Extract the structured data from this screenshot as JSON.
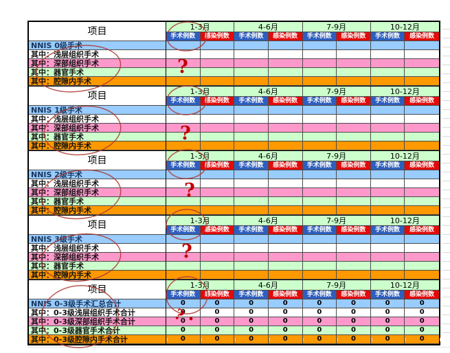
{
  "page": {
    "project_label": "项目"
  },
  "quarters": [
    "1-3月",
    "4-6月",
    "7-9月",
    "10-12月"
  ],
  "subheaders": {
    "surgery": "手术例数",
    "infection": "感染例数"
  },
  "colors": {
    "month_header_bg": "#CCFFCC",
    "surgery_header_bg": "#2E5FBF",
    "infection_header_bg": "#E30A0A",
    "row_colors": [
      "#99CCFF",
      "#FFFFFF",
      "#FF99CC",
      "#CCFFCC",
      "#FF9900"
    ],
    "annotation_stroke": "#AE3B33",
    "question_mark_color": "#C00000"
  },
  "blocks": [
    {
      "title": "NNIS 0级手术",
      "sub_rows": [
        "其中：浅层组织手术",
        "其中：深部组织手术",
        "其中：器官手术",
        "其中：腔隙内手术"
      ],
      "values": [
        [
          "",
          "",
          "",
          "",
          "",
          "",
          "",
          ""
        ],
        [
          "",
          "",
          "",
          "",
          "",
          "",
          "",
          ""
        ],
        [
          "",
          "",
          "",
          "",
          "",
          "",
          "",
          ""
        ],
        [
          "",
          "",
          "",
          "",
          "",
          "",
          "",
          ""
        ],
        [
          "",
          "",
          "",
          "",
          "",
          "",
          "",
          ""
        ]
      ]
    },
    {
      "title": "NNIS 1级手术",
      "sub_rows": [
        "其中：浅层组织手术",
        "其中：深部组织手术",
        "其中：器官手术",
        "其中：腔隙内手术"
      ],
      "values": [
        [
          "",
          "",
          "",
          "",
          "",
          "",
          "",
          ""
        ],
        [
          "",
          "",
          "",
          "",
          "",
          "",
          "",
          ""
        ],
        [
          "",
          "",
          "",
          "",
          "",
          "",
          "",
          ""
        ],
        [
          "",
          "",
          "",
          "",
          "",
          "",
          "",
          ""
        ],
        [
          "",
          "",
          "",
          "",
          "",
          "",
          "",
          ""
        ]
      ]
    },
    {
      "title": "NNIS 2级手术",
      "sub_rows": [
        "其中：浅层组织手术",
        "其中：深部组织手术",
        "其中：器官手术",
        "其中：腔隙内手术"
      ],
      "values": [
        [
          "",
          "",
          "",
          "",
          "",
          "",
          "",
          ""
        ],
        [
          "",
          "",
          "",
          "",
          "",
          "",
          "",
          ""
        ],
        [
          "",
          "",
          "",
          "",
          "",
          "",
          "",
          ""
        ],
        [
          "",
          "",
          "",
          "",
          "",
          "",
          "",
          ""
        ],
        [
          "",
          "",
          "",
          "",
          "",
          "",
          "",
          ""
        ]
      ]
    },
    {
      "title": "NNIS 3级手术",
      "sub_rows": [
        "其中：浅层组织手术",
        "其中：深部组织手术",
        "其中：器官手术",
        "其中：腔隙内手术"
      ],
      "values": [
        [
          "",
          "",
          "",
          "",
          "",
          "",
          "",
          ""
        ],
        [
          "",
          "",
          "",
          "",
          "",
          "",
          "",
          ""
        ],
        [
          "",
          "",
          "",
          "",
          "",
          "",
          "",
          ""
        ],
        [
          "",
          "",
          "",
          "",
          "",
          "",
          "",
          ""
        ],
        [
          "",
          "",
          "",
          "",
          "",
          "",
          "",
          ""
        ]
      ]
    },
    {
      "title": "NNIS 0-3级手术汇总合计",
      "sub_rows": [
        "其中：0-3级浅层组织手术合计",
        "其中：0-3级深部组织手术合计",
        "其中：0-3级器官手术合计",
        "其中：0-3级腔隙内手术合计"
      ],
      "values": [
        [
          "0",
          "0",
          "0",
          "0",
          "0",
          "0",
          "0",
          "0"
        ],
        [
          "0",
          "0",
          "0",
          "0",
          "0",
          "0",
          "0",
          "0"
        ],
        [
          "0",
          "0",
          "0",
          "0",
          "0",
          "0",
          "0",
          "0"
        ],
        [
          "0",
          "0",
          "0",
          "0",
          "0",
          "0",
          "0",
          "0"
        ],
        [
          "0",
          "0",
          "0",
          "0",
          "0",
          "0",
          "0",
          "0"
        ]
      ]
    }
  ],
  "annotations": {
    "question_mark": "?"
  }
}
